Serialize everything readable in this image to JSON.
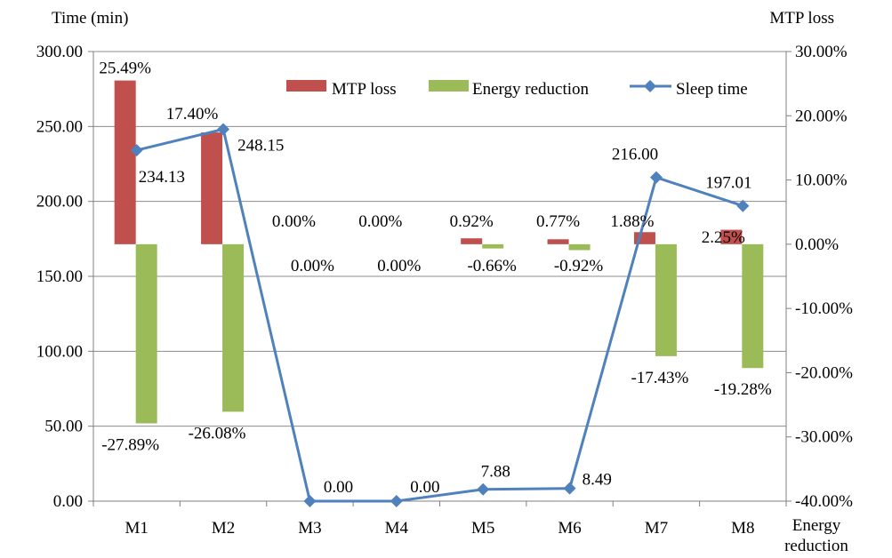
{
  "chart_data": {
    "type": "bar",
    "categories": [
      "M1",
      "M2",
      "M3",
      "M4",
      "M5",
      "M6",
      "M7",
      "M8"
    ],
    "y_left": {
      "label": "Time (min)",
      "range": [
        0,
        300
      ],
      "ticks": [
        "0.00",
        "50.00",
        "100.00",
        "150.00",
        "200.00",
        "250.00",
        "300.00"
      ]
    },
    "y_right": {
      "label_top": "MTP loss",
      "label_bottom": "Energy reduction",
      "range": [
        -40,
        30
      ],
      "ticks": [
        "-40.00%",
        "-30.00%",
        "-20.00%",
        "-10.00%",
        "0.00%",
        "10.00%",
        "20.00%",
        "30.00%"
      ]
    },
    "series": [
      {
        "name": "MTP loss",
        "type": "bar",
        "axis": "right",
        "color": "#c0504d",
        "values": [
          25.49,
          17.4,
          0.0,
          0.0,
          0.92,
          0.77,
          1.88,
          2.25
        ],
        "labels": [
          "25.49%",
          "17.40%",
          "0.00%",
          "0.00%",
          "0.92%",
          "0.77%",
          "1.88%",
          "2.25%"
        ]
      },
      {
        "name": "Energy reduction",
        "type": "bar",
        "axis": "right",
        "color": "#9bbb59",
        "values": [
          -27.89,
          -26.08,
          0.0,
          0.0,
          -0.66,
          -0.92,
          -17.43,
          -19.28
        ],
        "labels": [
          "-27.89%",
          "-26.08%",
          "0.00%",
          "0.00%",
          "-0.66%",
          "-0.92%",
          "-17.43%",
          "-19.28%"
        ]
      },
      {
        "name": "Sleep time",
        "type": "line",
        "axis": "left",
        "color": "#4f81bd",
        "values": [
          234.13,
          248.15,
          0.0,
          0.0,
          7.88,
          8.49,
          216.0,
          197.01
        ],
        "labels": [
          "234.13",
          "248.15",
          "0.00",
          "0.00",
          "7.88",
          "8.49",
          "216.00",
          "197.01"
        ]
      }
    ],
    "grid": true,
    "legend_placement": "top-right"
  }
}
